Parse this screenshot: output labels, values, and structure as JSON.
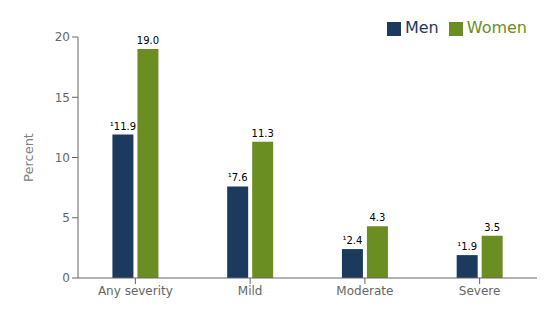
{
  "chart_data": {
    "type": "bar",
    "categories": [
      "Any severity",
      "Mild",
      "Moderate",
      "Severe"
    ],
    "series": [
      {
        "name": "Men",
        "color": "#1b3a5e",
        "values": [
          11.9,
          7.6,
          2.4,
          1.9
        ],
        "value_labels": [
          "¹11.9",
          "¹7.6",
          "¹2.4",
          "¹1.9"
        ]
      },
      {
        "name": "Women",
        "color": "#6b8e23",
        "values": [
          19.0,
          11.3,
          4.3,
          3.5
        ],
        "value_labels": [
          "19.0",
          "11.3",
          "4.3",
          "3.5"
        ]
      }
    ],
    "ylabel": "Percent",
    "ylim": [
      0,
      20
    ],
    "yticks": [
      0,
      5,
      10,
      15,
      20
    ],
    "grid": false,
    "legend": "upper right",
    "data_labels": true
  }
}
